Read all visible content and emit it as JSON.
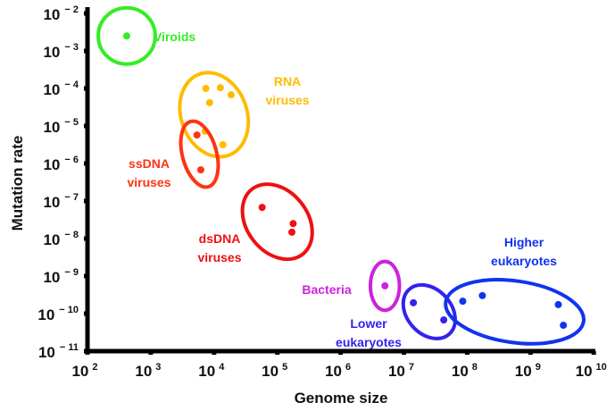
{
  "chart_data": {
    "type": "scatter",
    "title": "",
    "xlabel": "Genome size",
    "ylabel": "Mutation rate",
    "xscale": "log",
    "yscale": "log",
    "xlim_log10": [
      2,
      10
    ],
    "ylim_log10": [
      -11,
      -2
    ],
    "grid": false,
    "x_ticks": [
      {
        "base": "10",
        "exp": "2",
        "value": 2
      },
      {
        "base": "10",
        "exp": "3",
        "value": 3
      },
      {
        "base": "10",
        "exp": "4",
        "value": 4
      },
      {
        "base": "10",
        "exp": "5",
        "value": 5
      },
      {
        "base": "10",
        "exp": "6",
        "value": 6
      },
      {
        "base": "10",
        "exp": "7",
        "value": 7
      },
      {
        "base": "10",
        "exp": "8",
        "value": 8
      },
      {
        "base": "10",
        "exp": "9",
        "value": 9
      },
      {
        "base": "10",
        "exp": "10",
        "value": 10
      }
    ],
    "y_ticks": [
      {
        "base": "10",
        "exp": "− 2",
        "value": -2
      },
      {
        "base": "10",
        "exp": "− 3",
        "value": -3
      },
      {
        "base": "10",
        "exp": "− 4",
        "value": -4
      },
      {
        "base": "10",
        "exp": "− 5",
        "value": -5
      },
      {
        "base": "10",
        "exp": "− 6",
        "value": -6
      },
      {
        "base": "10",
        "exp": "− 7",
        "value": -7
      },
      {
        "base": "10",
        "exp": "− 8",
        "value": -8
      },
      {
        "base": "10",
        "exp": "− 9",
        "value": -9
      },
      {
        "base": "10",
        "exp": "− 10",
        "value": -10
      },
      {
        "base": "10",
        "exp": "− 11",
        "value": -11
      }
    ],
    "series": [
      {
        "name": "Viroids",
        "label_lines": [
          "Viroids"
        ],
        "color": "#33ee22",
        "points_log10": [
          [
            2.62,
            -2.6
          ]
        ],
        "ellipse": {
          "cx": 2.62,
          "cy": -2.6,
          "rx": 0.45,
          "ry": 0.75,
          "angle": 0
        }
      },
      {
        "name": "RNA viruses",
        "label_lines": [
          "RNA",
          "viruses"
        ],
        "color": "#ffbb00",
        "points_log10": [
          [
            3.87,
            -4.0
          ],
          [
            4.1,
            -3.98
          ],
          [
            4.27,
            -4.17
          ],
          [
            3.93,
            -4.38
          ],
          [
            3.86,
            -5.14
          ],
          [
            4.14,
            -5.5
          ]
        ],
        "ellipse": {
          "cx": 4.0,
          "cy": -4.7,
          "rx": 0.52,
          "ry": 1.15,
          "angle": -20
        }
      },
      {
        "name": "ssDNA viruses",
        "label_lines": [
          "ssDNA",
          "viruses"
        ],
        "color": "#ff3311",
        "points_log10": [
          [
            3.73,
            -5.24
          ],
          [
            3.79,
            -6.17
          ]
        ],
        "ellipse": {
          "cx": 3.77,
          "cy": -5.75,
          "rx": 0.27,
          "ry": 0.9,
          "angle": -15
        }
      },
      {
        "name": "dsDNA viruses",
        "label_lines": [
          "dsDNA",
          "viruses"
        ],
        "color": "#ee1111",
        "points_log10": [
          [
            4.76,
            -7.17
          ],
          [
            5.25,
            -7.6
          ],
          [
            5.23,
            -7.83
          ]
        ],
        "ellipse": {
          "cx": 5.0,
          "cy": -7.55,
          "rx": 0.48,
          "ry": 1.1,
          "angle": -38
        }
      },
      {
        "name": "Bacteria",
        "label_lines": [
          "Bacteria"
        ],
        "color": "#cc22dd",
        "points_log10": [
          [
            6.7,
            -9.26
          ]
        ],
        "ellipse": {
          "cx": 6.7,
          "cy": -9.26,
          "rx": 0.23,
          "ry": 0.65,
          "angle": 0
        }
      },
      {
        "name": "Lower eukaryotes",
        "label_lines": [
          "Lower",
          "eukaryotes"
        ],
        "color": "#3322ee",
        "points_log10": [
          [
            7.15,
            -9.71
          ],
          [
            7.63,
            -10.17
          ]
        ],
        "ellipse": {
          "cx": 7.4,
          "cy": -9.95,
          "rx": 0.35,
          "ry": 0.8,
          "angle": -42
        }
      },
      {
        "name": "Higher eukaryotes",
        "label_lines": [
          "Higher",
          "eukaryotes"
        ],
        "color": "#1133ee",
        "points_log10": [
          [
            7.93,
            -9.67
          ],
          [
            8.24,
            -9.52
          ],
          [
            9.44,
            -9.76
          ],
          [
            9.52,
            -10.31
          ]
        ],
        "ellipse": {
          "cx": 8.75,
          "cy": -9.95,
          "rx": 1.1,
          "ry": 0.82,
          "angle": 8
        }
      }
    ]
  }
}
